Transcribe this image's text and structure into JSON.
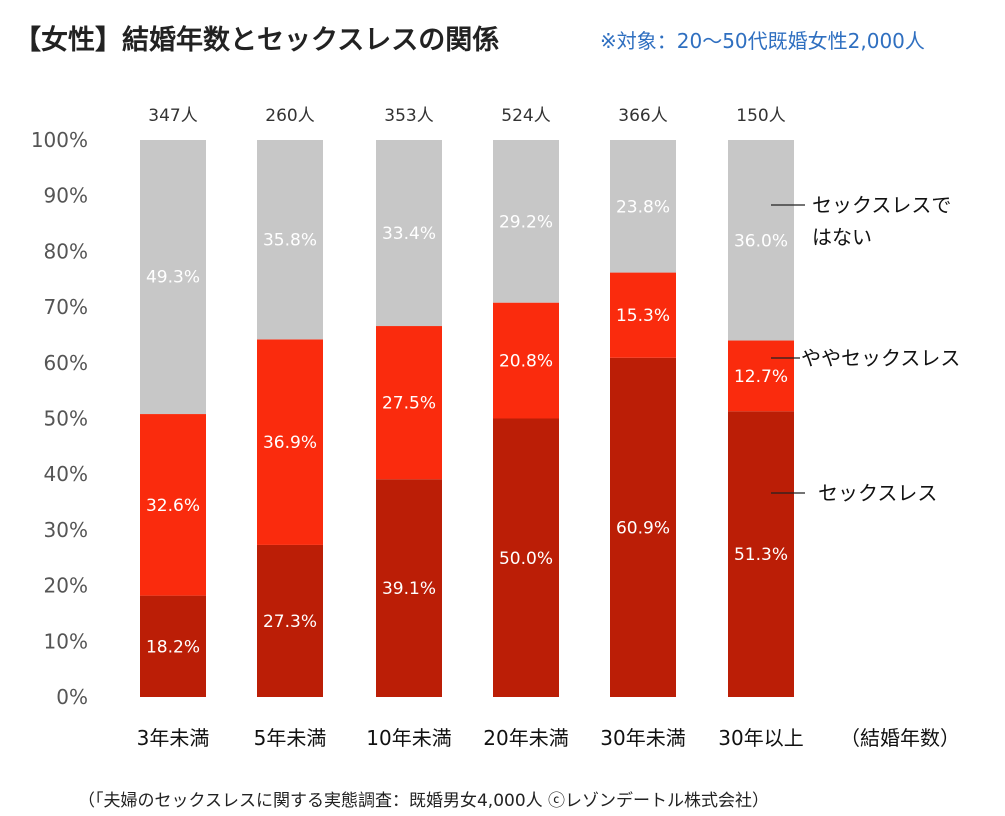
{
  "title": "【女性】結婚年数とセックスレスの関係",
  "subtitle": "※対象：20～50代既婚女性2,000人",
  "footnote": "（「夫婦のセックスレスに関する実態調査：既婚男女4,000人 ⓒレゾンデートル株式会社）",
  "chart_data": {
    "type": "bar",
    "stacked": true,
    "categories": [
      "3年未満",
      "5年未満",
      "10年未満",
      "20年未満",
      "30年未満",
      "30年以上"
    ],
    "category_axis_note": "（結婚年数）",
    "counts": [
      "347人",
      "260人",
      "353人",
      "524人",
      "366人",
      "150人"
    ],
    "ylim": [
      0,
      100
    ],
    "yticks": [
      "0%",
      "10%",
      "20%",
      "30%",
      "40%",
      "50%",
      "60%",
      "70%",
      "80%",
      "90%",
      "100%"
    ],
    "grid": false,
    "legend_placement": "right",
    "series": [
      {
        "name": "セックスレス",
        "color": "#bb1e06",
        "values": [
          18.2,
          27.3,
          39.1,
          50.0,
          60.9,
          51.3
        ],
        "labels": [
          "18.2%",
          "27.3%",
          "39.1%",
          "50.0%",
          "60.9%",
          "51.3%"
        ]
      },
      {
        "name": "ややセックスレス",
        "color": "#fa2b0d",
        "values": [
          32.6,
          36.9,
          27.5,
          20.8,
          15.3,
          12.7
        ],
        "labels": [
          "32.6%",
          "36.9%",
          "27.5%",
          "20.8%",
          "15.3%",
          "12.7%"
        ]
      },
      {
        "name": "セックスレスではない",
        "color": "#c7c7c7",
        "values": [
          49.3,
          35.8,
          33.4,
          29.2,
          23.8,
          36.0
        ],
        "labels": [
          "49.3%",
          "35.8%",
          "33.4%",
          "29.2%",
          "23.8%",
          "36.0%"
        ]
      }
    ]
  }
}
